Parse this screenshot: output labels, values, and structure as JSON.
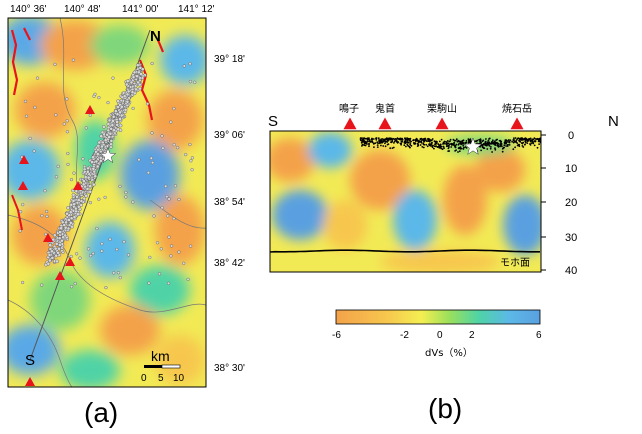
{
  "panel_a": {
    "caption": "(a)",
    "lon_ticks": [
      "140° 36'",
      "140° 48'",
      "141° 00'",
      "141° 12'"
    ],
    "lat_ticks": [
      "39° 18'",
      "39° 06'",
      "38° 54'",
      "38° 42'",
      "38° 30'"
    ],
    "profile_north_label": "N",
    "profile_south_label": "S",
    "scale_unit": "km",
    "scale_ticks": [
      "0",
      "5",
      "10"
    ],
    "colors": {
      "volcano": "#e8141c",
      "fault": "#e8141c",
      "quake": "#d8d8d8",
      "star": "#ffffff"
    }
  },
  "panel_b": {
    "caption": "(b)",
    "south_label": "S",
    "north_label": "N",
    "volcanoes": [
      "鳴子",
      "鬼首",
      "栗駒山",
      "焼石岳"
    ],
    "depth_ticks": [
      "0",
      "10",
      "20",
      "30",
      "40"
    ],
    "moho_label": "モホ面"
  },
  "colorbar": {
    "ticks": [
      "-6",
      "-2",
      "0",
      "2",
      "6"
    ],
    "label": "dVs（%）",
    "colors": [
      "#f4a24a",
      "#f7c74e",
      "#f4ef52",
      "#9ee05a",
      "#4fd3a6",
      "#5cb8e8",
      "#5aa0e0"
    ]
  }
}
